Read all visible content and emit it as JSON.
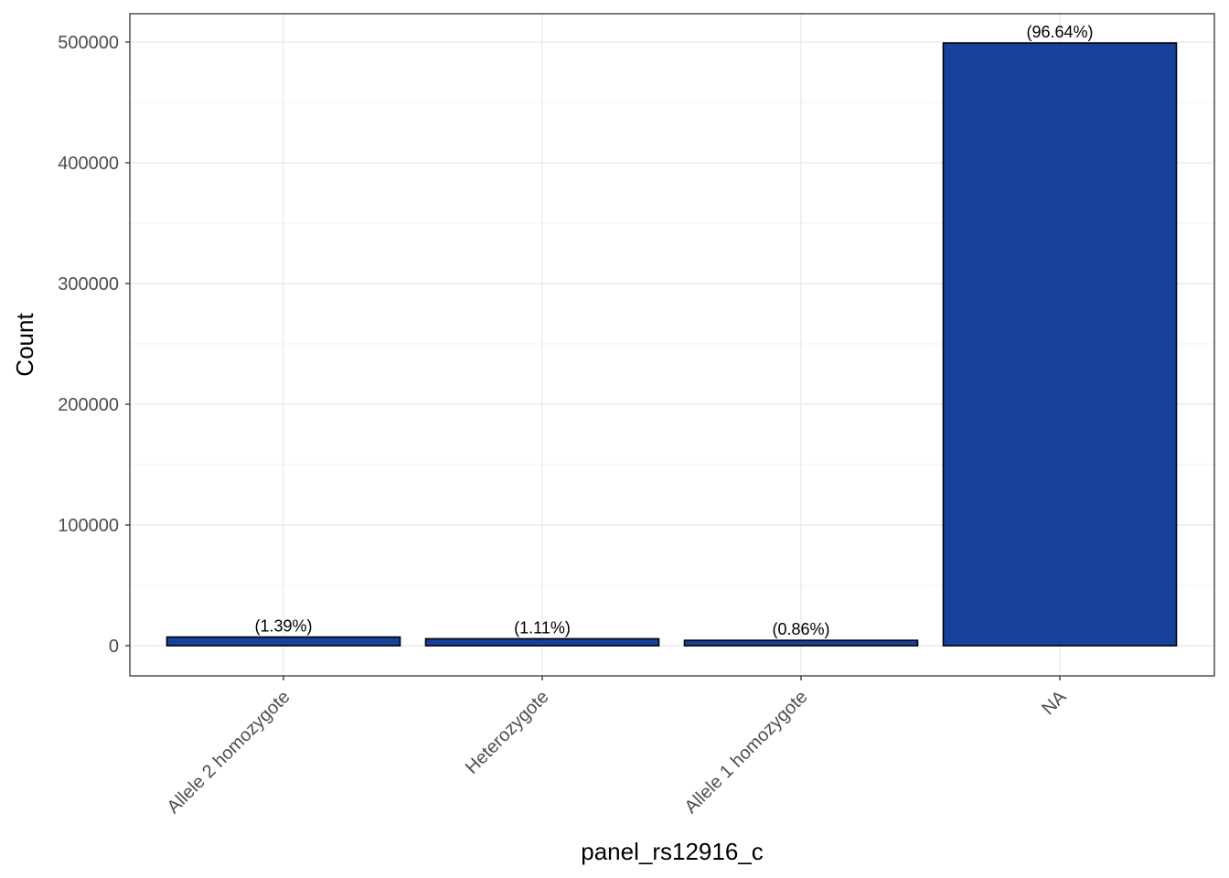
{
  "chart_data": {
    "type": "bar",
    "title": "",
    "xlabel": "panel_rs12916_c",
    "ylabel": "Count",
    "categories": [
      "Allele 2 homozygote",
      "Heterozygote",
      "Allele 1 homozygote",
      "NA"
    ],
    "values": [
      7180,
      5740,
      4440,
      499200
    ],
    "data_labels": [
      "(1.39%)",
      "(1.11%)",
      "(0.86%)",
      "(96.64%)"
    ],
    "ylim": [
      -25000,
      523000
    ],
    "yticks": [
      0,
      100000,
      200000,
      300000,
      400000,
      500000
    ],
    "ytick_labels": [
      "0",
      "100000",
      "200000",
      "300000",
      "400000",
      "500000"
    ],
    "grid": true,
    "bar_color": "#17419A",
    "bar_edge_color": "#000000"
  }
}
